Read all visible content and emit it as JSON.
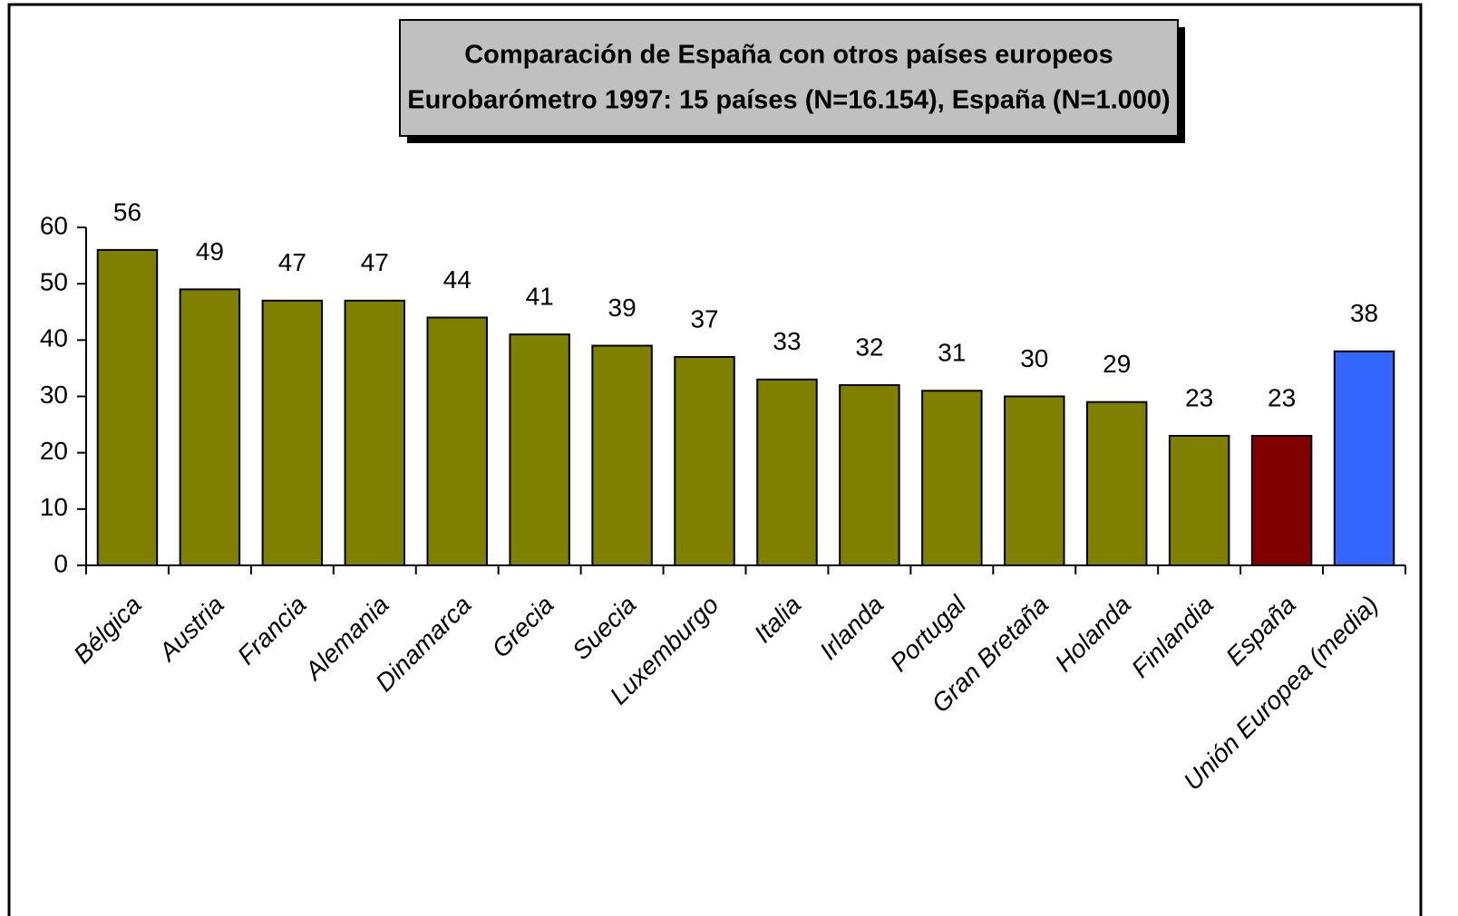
{
  "chart_data": {
    "type": "bar",
    "title": "Comparación de España con otros países europeos",
    "subtitle": "Eurobarómetro 1997: 15 países (N=16.154), España (N=1.000)",
    "categories": [
      "Bélgica",
      "Austria",
      "Francia",
      "Alemania",
      "Dinamarca",
      "Grecia",
      "Suecia",
      "Luxemburgo",
      "Italia",
      "Irlanda",
      "Portugal",
      "Gran Bretaña",
      "Holanda",
      "Finlandia",
      "España",
      "Unión Europea (media)"
    ],
    "values": [
      56,
      49,
      47,
      47,
      44,
      41,
      39,
      37,
      33,
      32,
      31,
      30,
      29,
      23,
      23,
      38
    ],
    "colors": [
      "#808000",
      "#808000",
      "#808000",
      "#808000",
      "#808000",
      "#808000",
      "#808000",
      "#808000",
      "#808000",
      "#808000",
      "#808000",
      "#808000",
      "#808000",
      "#808000",
      "#800000",
      "#3366ff"
    ],
    "ylim": [
      0,
      60
    ],
    "yticks": [
      0,
      10,
      20,
      30,
      40,
      50,
      60
    ],
    "grid": false
  }
}
